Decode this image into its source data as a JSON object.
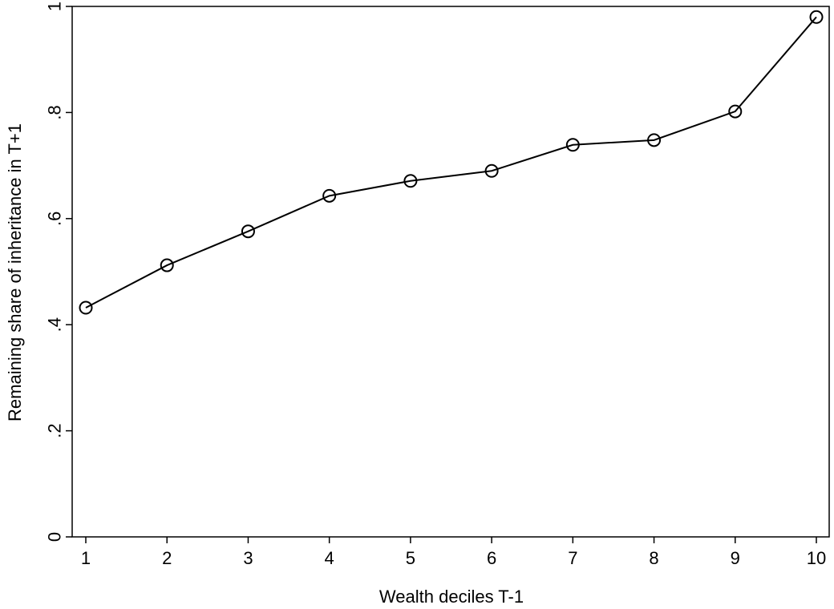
{
  "chart_data": {
    "type": "line",
    "xlabel": "Wealth deciles T-1",
    "ylabel": "Remaining share of inheritance in T+1",
    "x": [
      1,
      2,
      3,
      4,
      5,
      6,
      7,
      8,
      9,
      10
    ],
    "xticks": [
      "1",
      "2",
      "3",
      "4",
      "5",
      "6",
      "7",
      "8",
      "9",
      "10"
    ],
    "yticks": [
      {
        "value": 0,
        "label": "0"
      },
      {
        "value": 0.2,
        "label": ".2"
      },
      {
        "value": 0.4,
        "label": ".4"
      },
      {
        "value": 0.6,
        "label": ".6"
      },
      {
        "value": 0.8,
        "label": ".8"
      },
      {
        "value": 1,
        "label": "1"
      }
    ],
    "xlim": [
      1,
      10
    ],
    "ylim": [
      0,
      1
    ],
    "grid": false,
    "series": [
      {
        "values": [
          0.432,
          0.512,
          0.576,
          0.643,
          0.671,
          0.69,
          0.739,
          0.748,
          0.802,
          0.98
        ],
        "marker": "hollow-circle",
        "color": "#000000"
      }
    ]
  }
}
